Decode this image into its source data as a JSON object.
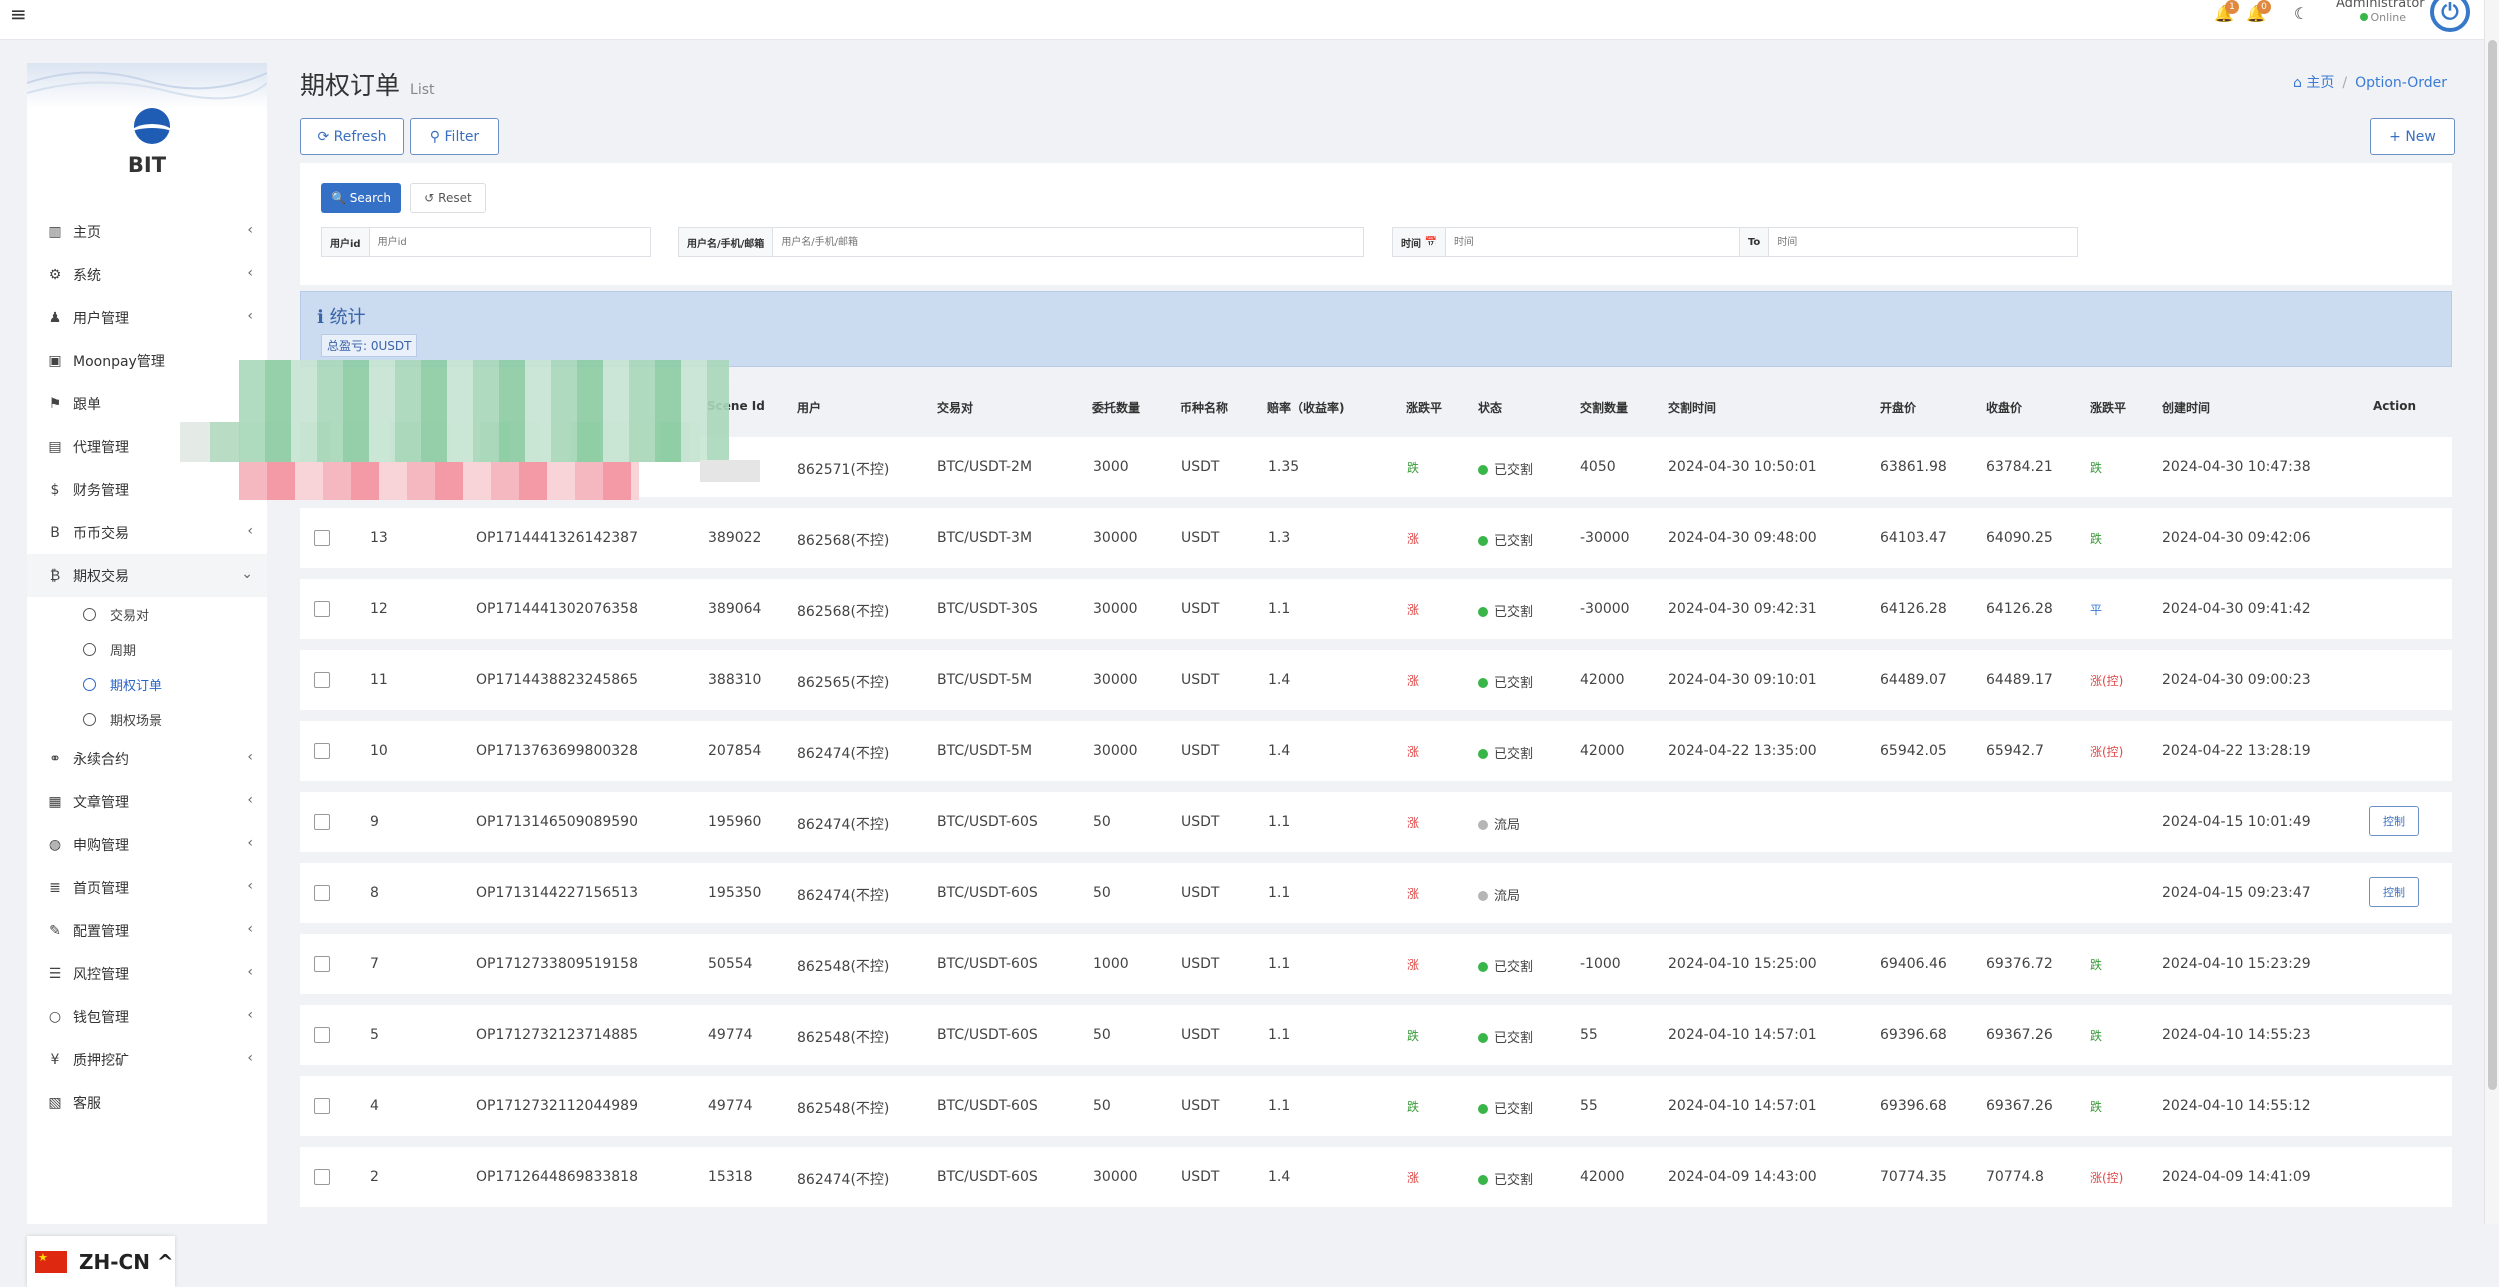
{
  "topbar": {
    "menu_icon": "hamburger-icon",
    "notif_badge_1": "1",
    "notif_badge_2": "0",
    "admin_name": "Administrator",
    "admin_status": "Online"
  },
  "sidebar": {
    "brand": "BIT",
    "items": [
      {
        "icon": "chart-icon",
        "label": "主页",
        "chev": true
      },
      {
        "icon": "gear-icon",
        "label": "系统",
        "chev": true
      },
      {
        "icon": "user-icon",
        "label": "用户管理",
        "chev": true
      },
      {
        "icon": "card-icon",
        "label": "Moonpay管理",
        "chev": false
      },
      {
        "icon": "flag-icon",
        "label": "跟单",
        "chev": false
      },
      {
        "icon": "id-card-icon",
        "label": "代理管理",
        "chev": false
      },
      {
        "icon": "dollar-icon",
        "label": "财务管理",
        "chev": false
      },
      {
        "icon": "b-icon",
        "label": "币币交易",
        "chev": true
      },
      {
        "icon": "bitcoin-icon",
        "label": "期权交易",
        "chev": true
      }
    ],
    "sub_items": [
      {
        "label": "交易对"
      },
      {
        "label": "周期"
      },
      {
        "label": "期权订单"
      },
      {
        "label": "期权场景"
      }
    ],
    "items_after": [
      {
        "icon": "link-icon",
        "label": "永续合约",
        "chev": true
      },
      {
        "icon": "newspaper-icon",
        "label": "文章管理",
        "chev": true
      },
      {
        "icon": "globe-icon",
        "label": "申购管理",
        "chev": true
      },
      {
        "icon": "list-icon",
        "label": "首页管理",
        "chev": true
      },
      {
        "icon": "wrench-icon",
        "label": "配置管理",
        "chev": true
      },
      {
        "icon": "list-alt-icon",
        "label": "风控管理",
        "chev": true
      },
      {
        "icon": "circle-icon",
        "label": "钱包管理",
        "chev": true
      },
      {
        "icon": "yen-icon",
        "label": "质押挖矿",
        "chev": true
      },
      {
        "icon": "contact-icon",
        "label": "客服",
        "chev": false
      }
    ],
    "lang": "ZH-CN ^"
  },
  "header": {
    "title": "期权订单",
    "subtitle": "List",
    "breadcrumb_home": "主页",
    "breadcrumb_current": "Option-Order",
    "refresh": "Refresh",
    "filter": "Filter",
    "new": "+ New"
  },
  "filter": {
    "search": "Search",
    "reset": "Reset",
    "uid_label": "用户id",
    "uid_placeholder": "用户id",
    "user_label": "用户名/手机/邮箱",
    "user_placeholder": "用户名/手机/邮箱",
    "time_label": "时间",
    "time_placeholder": "时间",
    "to_label": "To",
    "to_placeholder": "时间"
  },
  "stats": {
    "title": "统计",
    "total": "总盈亏: 0USDT"
  },
  "table": {
    "headers": [
      "Scene Id",
      "用户",
      "交易对",
      "委托数量",
      "币种名称",
      "赔率（收益率)",
      "涨跌平",
      "状态",
      "交割数量",
      "交割时间",
      "开盘价",
      "收盘价",
      "涨跌平",
      "创建时间",
      "Action"
    ],
    "rows": [
      {
        "id": "",
        "order": "",
        "scene": "",
        "user": "862571(不控)",
        "pair": "BTC/USDT-2M",
        "qty": "3000",
        "coin": "USDT",
        "rate": "1.35",
        "dir": "跌",
        "dirc": "down",
        "status": "已交割",
        "sc": "#39b54a",
        "dqty": "4050",
        "dtime": "2024-04-30 10:50:01",
        "open": "63861.98",
        "close": "63784.21",
        "res": "跌",
        "resc": "down",
        "created": "2024-04-30 10:47:38",
        "action": ""
      },
      {
        "id": "13",
        "order": "OP1714441326142387",
        "scene": "389022",
        "user": "862568(不控)",
        "pair": "BTC/USDT-3M",
        "qty": "30000",
        "coin": "USDT",
        "rate": "1.3",
        "dir": "涨",
        "dirc": "up",
        "status": "已交割",
        "sc": "#39b54a",
        "dqty": "-30000",
        "dtime": "2024-04-30 09:48:00",
        "open": "64103.47",
        "close": "64090.25",
        "res": "跌",
        "resc": "down",
        "created": "2024-04-30 09:42:06",
        "action": ""
      },
      {
        "id": "12",
        "order": "OP1714441302076358",
        "scene": "389064",
        "user": "862568(不控)",
        "pair": "BTC/USDT-30S",
        "qty": "30000",
        "coin": "USDT",
        "rate": "1.1",
        "dir": "涨",
        "dirc": "up",
        "status": "已交割",
        "sc": "#39b54a",
        "dqty": "-30000",
        "dtime": "2024-04-30 09:42:31",
        "open": "64126.28",
        "close": "64126.28",
        "res": "平",
        "resc": "flat",
        "created": "2024-04-30 09:41:42",
        "action": ""
      },
      {
        "id": "11",
        "order": "OP1714438823245865",
        "scene": "388310",
        "user": "862565(不控)",
        "pair": "BTC/USDT-5M",
        "qty": "30000",
        "coin": "USDT",
        "rate": "1.4",
        "dir": "涨",
        "dirc": "up",
        "status": "已交割",
        "sc": "#39b54a",
        "dqty": "42000",
        "dtime": "2024-04-30 09:10:01",
        "open": "64489.07",
        "close": "64489.17",
        "res": "涨(控)",
        "resc": "up",
        "created": "2024-04-30 09:00:23",
        "action": ""
      },
      {
        "id": "10",
        "order": "OP1713763699800328",
        "scene": "207854",
        "user": "862474(不控)",
        "pair": "BTC/USDT-5M",
        "qty": "30000",
        "coin": "USDT",
        "rate": "1.4",
        "dir": "涨",
        "dirc": "up",
        "status": "已交割",
        "sc": "#39b54a",
        "dqty": "42000",
        "dtime": "2024-04-22 13:35:00",
        "open": "65942.05",
        "close": "65942.7",
        "res": "涨(控)",
        "resc": "up",
        "created": "2024-04-22 13:28:19",
        "action": ""
      },
      {
        "id": "9",
        "order": "OP1713146509089590",
        "scene": "195960",
        "user": "862474(不控)",
        "pair": "BTC/USDT-60S",
        "qty": "50",
        "coin": "USDT",
        "rate": "1.1",
        "dir": "涨",
        "dirc": "up",
        "status": "流局",
        "sc": "#b5b5b5",
        "dqty": "",
        "dtime": "",
        "open": "",
        "close": "",
        "res": "",
        "resc": "up",
        "created": "2024-04-15 10:01:49",
        "action": "控制"
      },
      {
        "id": "8",
        "order": "OP1713144227156513",
        "scene": "195350",
        "user": "862474(不控)",
        "pair": "BTC/USDT-60S",
        "qty": "50",
        "coin": "USDT",
        "rate": "1.1",
        "dir": "涨",
        "dirc": "up",
        "status": "流局",
        "sc": "#b5b5b5",
        "dqty": "",
        "dtime": "",
        "open": "",
        "close": "",
        "res": "",
        "resc": "up",
        "created": "2024-04-15 09:23:47",
        "action": "控制"
      },
      {
        "id": "7",
        "order": "OP1712733809519158",
        "scene": "50554",
        "user": "862548(不控)",
        "pair": "BTC/USDT-60S",
        "qty": "1000",
        "coin": "USDT",
        "rate": "1.1",
        "dir": "涨",
        "dirc": "up",
        "status": "已交割",
        "sc": "#39b54a",
        "dqty": "-1000",
        "dtime": "2024-04-10 15:25:00",
        "open": "69406.46",
        "close": "69376.72",
        "res": "跌",
        "resc": "down",
        "created": "2024-04-10 15:23:29",
        "action": ""
      },
      {
        "id": "5",
        "order": "OP1712732123714885",
        "scene": "49774",
        "user": "862548(不控)",
        "pair": "BTC/USDT-60S",
        "qty": "50",
        "coin": "USDT",
        "rate": "1.1",
        "dir": "跌",
        "dirc": "down",
        "status": "已交割",
        "sc": "#39b54a",
        "dqty": "55",
        "dtime": "2024-04-10 14:57:01",
        "open": "69396.68",
        "close": "69367.26",
        "res": "跌",
        "resc": "down",
        "created": "2024-04-10 14:55:23",
        "action": ""
      },
      {
        "id": "4",
        "order": "OP1712732112044989",
        "scene": "49774",
        "user": "862548(不控)",
        "pair": "BTC/USDT-60S",
        "qty": "50",
        "coin": "USDT",
        "rate": "1.1",
        "dir": "跌",
        "dirc": "down",
        "status": "已交割",
        "sc": "#39b54a",
        "dqty": "55",
        "dtime": "2024-04-10 14:57:01",
        "open": "69396.68",
        "close": "69367.26",
        "res": "跌",
        "resc": "down",
        "created": "2024-04-10 14:55:12",
        "action": ""
      },
      {
        "id": "2",
        "order": "OP1712644869833818",
        "scene": "15318",
        "user": "862474(不控)",
        "pair": "BTC/USDT-60S",
        "qty": "30000",
        "coin": "USDT",
        "rate": "1.4",
        "dir": "涨",
        "dirc": "up",
        "status": "已交割",
        "sc": "#39b54a",
        "dqty": "42000",
        "dtime": "2024-04-09 14:43:00",
        "open": "70774.35",
        "close": "70774.8",
        "res": "涨(控)",
        "resc": "up",
        "created": "2024-04-09 14:41:09",
        "action": ""
      }
    ]
  }
}
